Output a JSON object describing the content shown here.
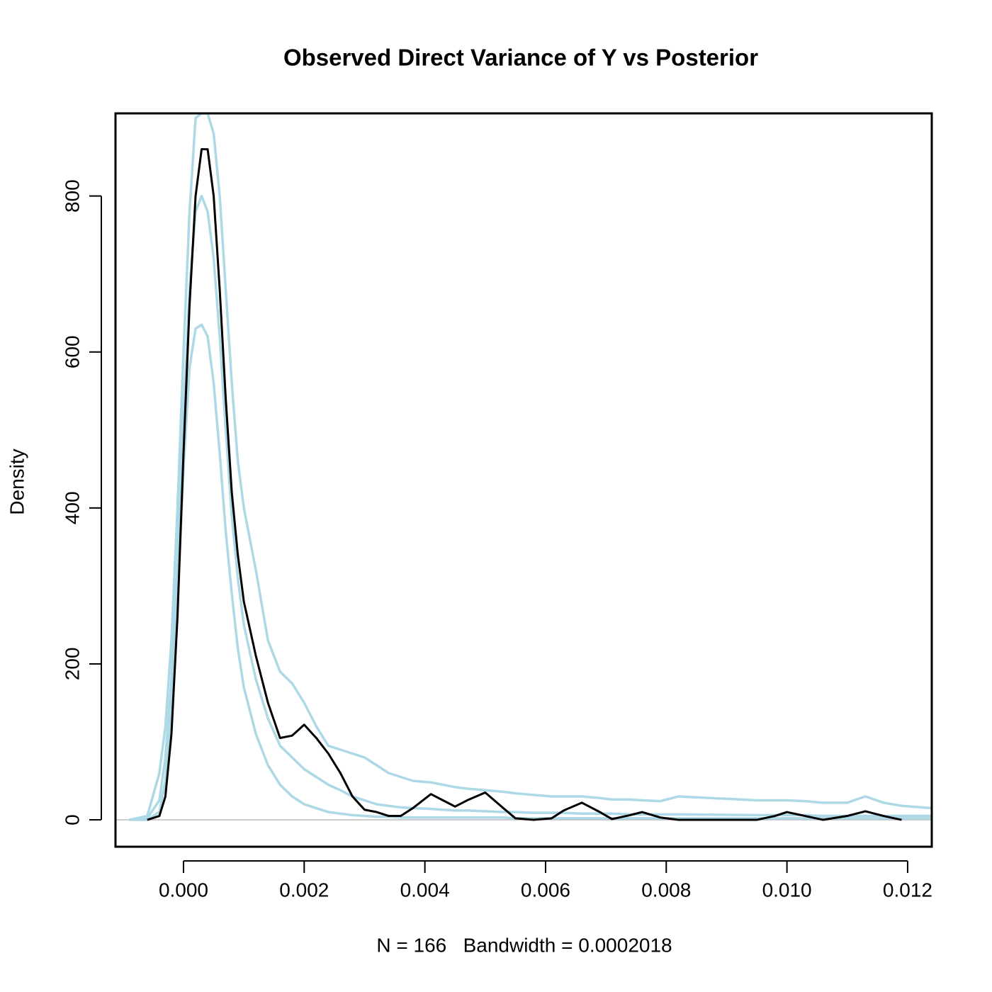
{
  "chart_data": {
    "type": "line",
    "title": "Observed Direct Variance of Y vs Posterior",
    "xlabel": "N = 166   Bandwidth = 0.0002018",
    "ylabel": "Density",
    "x": [
      -0.0009,
      -0.0006,
      -0.0004,
      -0.0003,
      -0.0002,
      -0.0001,
      0,
      0.0001,
      0.0002,
      0.0003,
      0.0004,
      0.0005,
      0.0006,
      0.0007,
      0.0008,
      0.0009,
      0.001,
      0.0012,
      0.0014,
      0.0016,
      0.0018,
      0.002,
      0.0022,
      0.0024,
      0.0026,
      0.0028,
      0.003,
      0.0032,
      0.0034,
      0.0036,
      0.0038,
      0.0041,
      0.0043,
      0.0045,
      0.0047,
      0.005,
      0.0053,
      0.0055,
      0.0058,
      0.0061,
      0.0063,
      0.0066,
      0.0069,
      0.0071,
      0.0074,
      0.0076,
      0.0079,
      0.0082,
      0.0095,
      0.0098,
      0.01,
      0.0103,
      0.0106,
      0.011,
      0.0113,
      0.0116,
      0.0119,
      0.0124
    ],
    "series": [
      {
        "color": "#add8e6",
        "values": [
          0,
          5,
          60,
          120,
          230,
          400,
          600,
          780,
          900,
          906,
          906,
          880,
          800,
          680,
          560,
          460,
          400,
          320,
          230,
          190,
          175,
          150,
          120,
          95,
          90,
          85,
          80,
          70,
          60,
          55,
          50,
          48,
          45,
          42,
          40,
          38,
          36,
          34,
          32,
          30,
          30,
          30,
          28,
          26,
          26,
          25,
          24,
          30,
          25,
          25,
          25,
          24,
          22,
          22,
          30,
          22,
          18,
          15
        ]
      },
      {
        "color": "#add8e6",
        "values": [
          0,
          2,
          25,
          80,
          180,
          330,
          520,
          680,
          780,
          800,
          780,
          720,
          620,
          500,
          390,
          310,
          250,
          180,
          130,
          95,
          80,
          65,
          55,
          45,
          38,
          30,
          25,
          20,
          18,
          16,
          15,
          14,
          13,
          12,
          12,
          11,
          10,
          10,
          9,
          9,
          9,
          8,
          8,
          8,
          7,
          7,
          7,
          7,
          6,
          6,
          6,
          6,
          5,
          5,
          5,
          5,
          5,
          5
        ]
      },
      {
        "color": "#add8e6",
        "values": [
          0,
          0,
          10,
          50,
          140,
          280,
          450,
          580,
          630,
          635,
          620,
          560,
          470,
          370,
          290,
          220,
          170,
          110,
          70,
          45,
          30,
          20,
          15,
          10,
          8,
          6,
          5,
          4,
          4,
          3,
          3,
          3,
          3,
          3,
          3,
          3,
          3,
          2,
          2,
          2,
          2,
          2,
          2,
          2,
          2,
          2,
          2,
          2,
          2,
          2,
          2,
          2,
          2,
          2,
          2,
          2,
          2,
          2
        ]
      },
      {
        "color": "#000000",
        "values": [
          null,
          0,
          5,
          30,
          110,
          260,
          470,
          660,
          800,
          860,
          860,
          800,
          680,
          540,
          420,
          340,
          280,
          210,
          150,
          105,
          108,
          122,
          105,
          85,
          60,
          30,
          13,
          10,
          5,
          5,
          15,
          33,
          25,
          17,
          25,
          35,
          15,
          2,
          0,
          2,
          12,
          22,
          10,
          1,
          6,
          10,
          3,
          0,
          0,
          5,
          10,
          5,
          0,
          5,
          11,
          5,
          0,
          null
        ]
      }
    ],
    "xlim": [
      -0.001127,
      0.0124
    ],
    "ylim": [
      -34.5,
      906
    ],
    "xticks": [
      {
        "value": 0,
        "label": "0.000"
      },
      {
        "value": 0.002,
        "label": "0.002"
      },
      {
        "value": 0.004,
        "label": "0.004"
      },
      {
        "value": 0.006,
        "label": "0.006"
      },
      {
        "value": 0.008,
        "label": "0.008"
      },
      {
        "value": 0.01,
        "label": "0.010"
      },
      {
        "value": 0.012,
        "label": "0.012"
      }
    ],
    "yticks": [
      0,
      200,
      400,
      600,
      800
    ]
  }
}
